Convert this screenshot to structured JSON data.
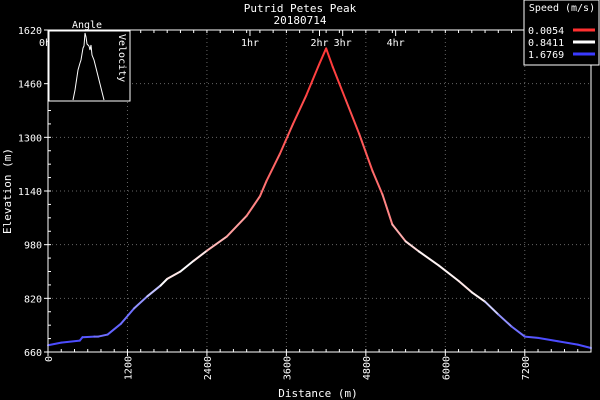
{
  "chart_data": {
    "type": "line",
    "title": "Putrid Petes Peak",
    "subtitle": "20180714",
    "xlabel": "Distance (m)",
    "ylabel": "Elevation (m)",
    "xlim": [
      0,
      8200
    ],
    "ylim": [
      660,
      1620
    ],
    "x_ticks": [
      "0",
      "1200",
      "2400",
      "3600",
      "4800",
      "6000",
      "7200"
    ],
    "y_ticks": [
      "660",
      "820",
      "980",
      "1140",
      "1300",
      "1460",
      "1620"
    ],
    "x_tick_values": [
      0,
      1200,
      2400,
      3600,
      4800,
      6000,
      7200
    ],
    "y_tick_values": [
      660,
      820,
      980,
      1140,
      1300,
      1460,
      1620
    ],
    "time_markers": [
      {
        "label": "0hr",
        "x": 0
      },
      {
        "label": "1hr",
        "x": 3050
      },
      {
        "label": "2hr",
        "x": 4100
      },
      {
        "label": "3hr",
        "x": 4450
      },
      {
        "label": "4hr",
        "x": 5250
      }
    ],
    "grid": true,
    "legend": {
      "title": "Speed (m/s)",
      "position": "top-right",
      "entries": [
        {
          "label": "0.0054",
          "color": "#ff3030"
        },
        {
          "label": "0.8411",
          "color": "#ffffff"
        },
        {
          "label": "1.6769",
          "color": "#3a3aff"
        }
      ]
    },
    "series": [
      {
        "points": [
          [
            0,
            680,
            1.6
          ],
          [
            200,
            688,
            1.6
          ],
          [
            480,
            694,
            1.6
          ],
          [
            520,
            704,
            1.6
          ],
          [
            700,
            706,
            1.5
          ],
          [
            760,
            706,
            1.4
          ],
          [
            900,
            712,
            1.5
          ],
          [
            1100,
            744,
            1.5
          ],
          [
            1300,
            790,
            1.4
          ],
          [
            1500,
            826,
            1.2
          ],
          [
            1700,
            858,
            1.0
          ],
          [
            1800,
            878,
            0.7
          ],
          [
            2000,
            900,
            0.8
          ],
          [
            2200,
            932,
            0.9
          ],
          [
            2400,
            962,
            0.6
          ],
          [
            2700,
            1004,
            0.5
          ],
          [
            3000,
            1066,
            0.4
          ],
          [
            3200,
            1124,
            0.3
          ],
          [
            3300,
            1170,
            0.25
          ],
          [
            3500,
            1250,
            0.2
          ],
          [
            3700,
            1340,
            0.15
          ],
          [
            3900,
            1425,
            0.1
          ],
          [
            4100,
            1520,
            0.05
          ],
          [
            4200,
            1565,
            0.03
          ],
          [
            4300,
            1510,
            0.05
          ],
          [
            4500,
            1410,
            0.1
          ],
          [
            4700,
            1310,
            0.15
          ],
          [
            4900,
            1200,
            0.2
          ],
          [
            5050,
            1130,
            0.3
          ],
          [
            5200,
            1040,
            0.4
          ],
          [
            5400,
            990,
            0.6
          ],
          [
            5600,
            960,
            0.8
          ],
          [
            5900,
            918,
            0.8
          ],
          [
            6200,
            872,
            0.8
          ],
          [
            6400,
            838,
            0.7
          ],
          [
            6600,
            810,
            0.9
          ],
          [
            6800,
            772,
            1.2
          ],
          [
            7000,
            736,
            1.4
          ],
          [
            7200,
            706,
            1.5
          ],
          [
            7400,
            702,
            1.6
          ],
          [
            7700,
            692,
            1.6
          ],
          [
            8000,
            682,
            1.6
          ],
          [
            8200,
            672,
            1.6
          ]
        ]
      }
    ]
  },
  "inset": {
    "left_label": "Angle",
    "right_label": "Velocity"
  }
}
